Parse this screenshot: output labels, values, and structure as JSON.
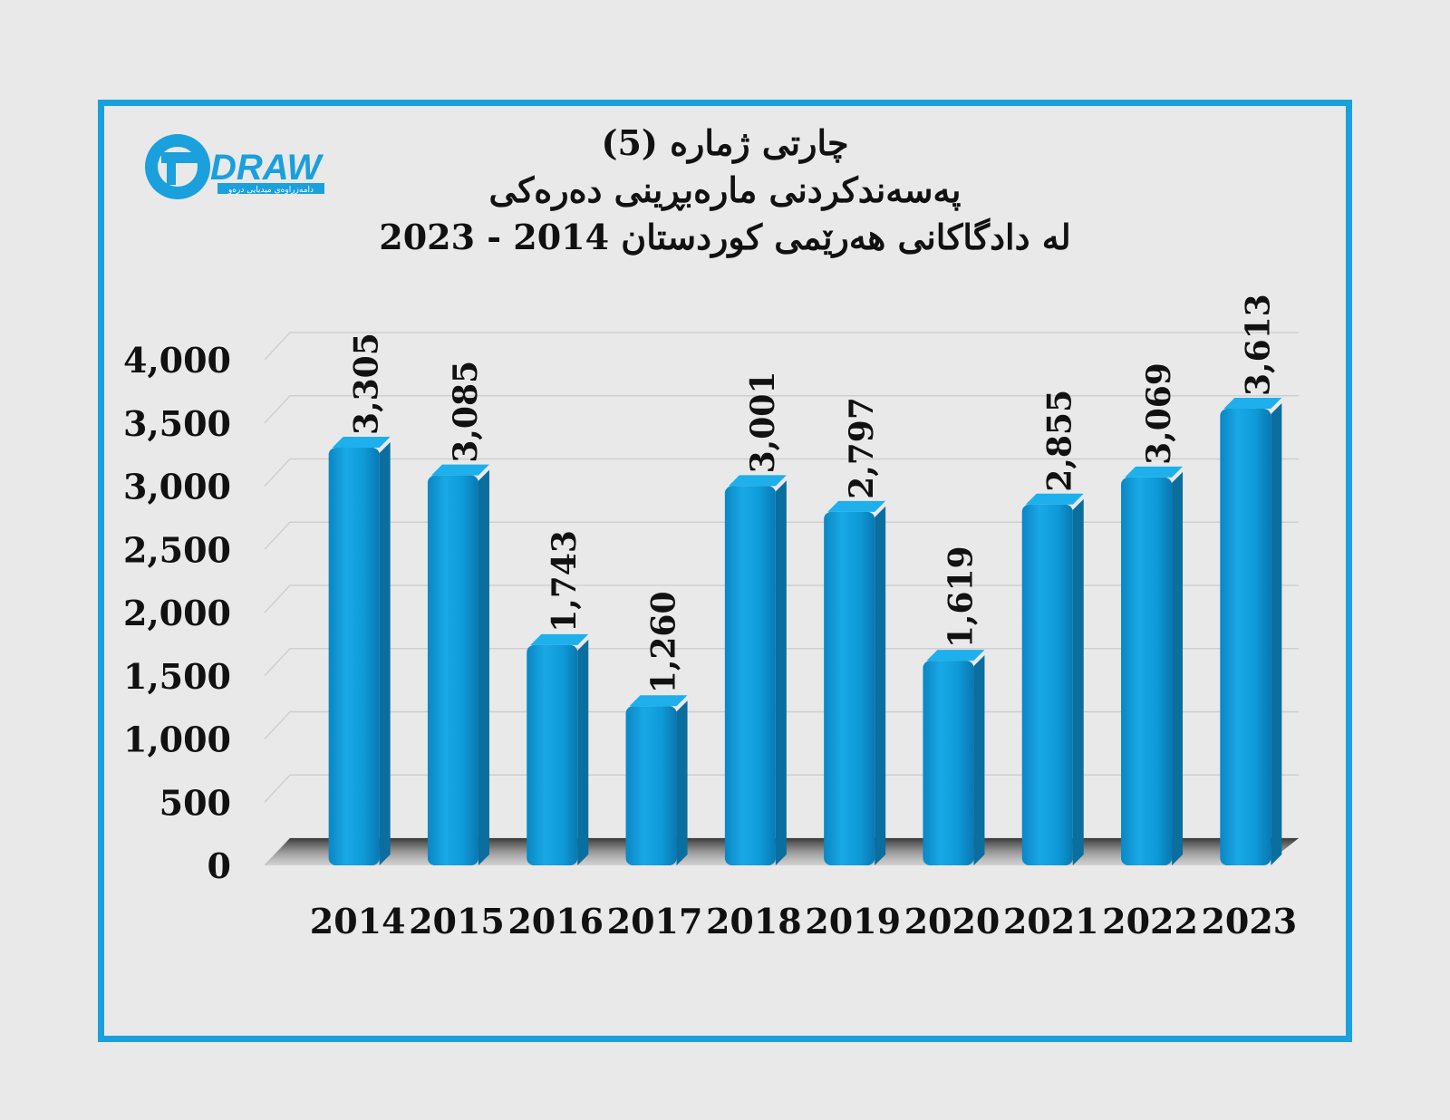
{
  "logo": {
    "wordmark": "DRAW",
    "tagline": "دامەزراوەی میدیایی درەو",
    "icon": "draw-logo-icon"
  },
  "title": {
    "line1": "چارتی ژمارە (5)",
    "line2": "پەسەندکردنی مارەبڕینی دەرەکی",
    "line3": "لە دادگاکانی هەرێمی کوردستان 2014 - 2023"
  },
  "colors": {
    "frame": "#1aa0dc",
    "bar": "#0e9ad8",
    "bar_dark": "#0a6e9e",
    "background": "#e9e9e9"
  },
  "chart_data": {
    "type": "bar",
    "categories": [
      "2014",
      "2015",
      "2016",
      "2017",
      "2018",
      "2019",
      "2020",
      "2021",
      "2022",
      "2023"
    ],
    "values": [
      3305,
      3085,
      1743,
      1260,
      3001,
      2797,
      1619,
      2855,
      3069,
      3613
    ],
    "value_labels": [
      "3,305",
      "3,085",
      "1,743",
      "1,260",
      "3,001",
      "2,797",
      "1,619",
      "2,855",
      "3,069",
      "3,613"
    ],
    "y_ticks": [
      0,
      500,
      1000,
      1500,
      2000,
      2500,
      3000,
      3500,
      4000
    ],
    "y_tick_labels": [
      "0",
      "500",
      "1,000",
      "1,500",
      "2,000",
      "2,500",
      "3,000",
      "3,500",
      "4,000"
    ],
    "ylim": [
      0,
      4000
    ],
    "grid": true,
    "legend": "none",
    "style": "3d-columns"
  }
}
